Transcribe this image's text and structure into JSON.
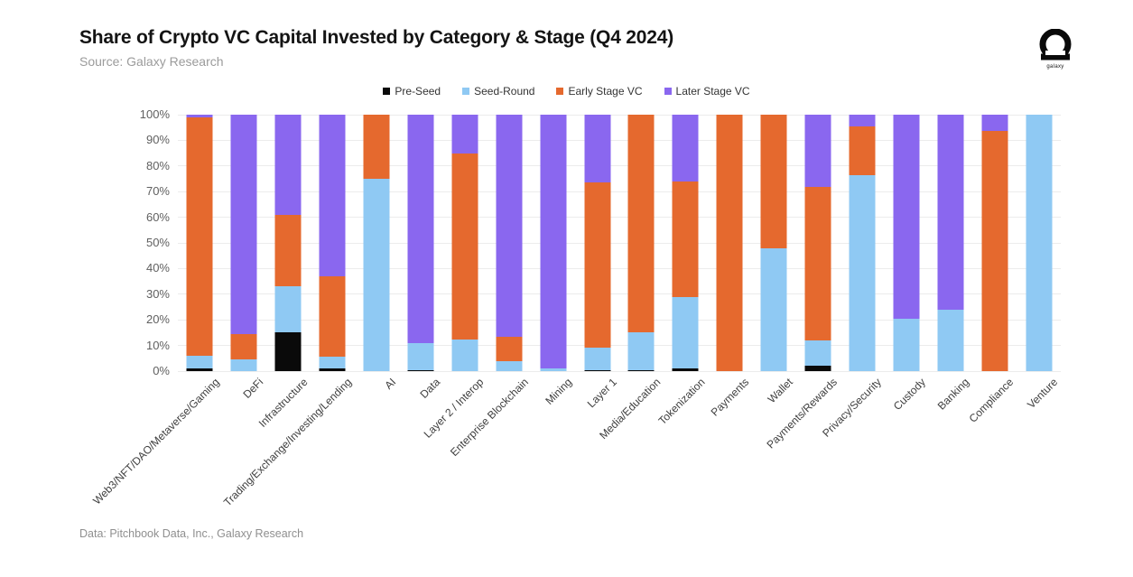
{
  "header": {
    "title": "Share of Crypto VC Capital Invested by Category & Stage (Q4 2024)",
    "source": "Source: Galaxy Research",
    "logo_text": "galaxy"
  },
  "footer": {
    "credit": "Data: Pitchbook Data, Inc., Galaxy Research"
  },
  "colors": {
    "pre_seed": "#0a0a0a",
    "seed_round": "#8FC9F3",
    "early_stage": "#E5692E",
    "later_stage": "#8A67EF",
    "gridline": "#ececec",
    "axis_text": "#606060"
  },
  "chart_data": {
    "type": "bar",
    "stacked": true,
    "stack_total": 100,
    "title": "Share of Crypto VC Capital Invested by Category & Stage (Q4 2024)",
    "xlabel": "",
    "ylabel": "",
    "ylim": [
      0,
      100
    ],
    "grid": true,
    "legend_position": "top-center",
    "ytick_labels": [
      "0%",
      "10%",
      "20%",
      "30%",
      "40%",
      "50%",
      "60%",
      "70%",
      "80%",
      "90%",
      "100%"
    ],
    "categories": [
      "Web3/NFT/DAO/Metaverse/Gaming",
      "DeFi",
      "Infrastructure",
      "Trading/Exchange/Investing/Lending",
      "AI",
      "Data",
      "Layer 2 / Interop",
      "Enterprise Blockchain",
      "Mining",
      "Layer 1",
      "Media/Education",
      "Tokenization",
      "Payments",
      "Wallet",
      "Payments/Rewards",
      "Privacy/Security",
      "Custody",
      "Banking",
      "Compliance",
      "Venture"
    ],
    "series": [
      {
        "name": "Pre-Seed",
        "color": "#0a0a0a",
        "values": [
          1,
          0,
          15,
          1,
          0,
          0.5,
          0,
          0,
          0,
          0.5,
          0.5,
          1,
          0,
          0,
          2,
          0,
          0,
          0,
          0,
          0
        ]
      },
      {
        "name": "Seed-Round",
        "color": "#8FC9F3",
        "values": [
          5,
          4.5,
          18,
          4.5,
          75,
          10.5,
          12.5,
          4,
          1,
          8.5,
          14.5,
          28,
          0,
          48,
          10,
          76.5,
          20.5,
          24,
          0,
          100
        ]
      },
      {
        "name": "Early Stage VC",
        "color": "#E5692E",
        "values": [
          93,
          10,
          28,
          31.5,
          25,
          0,
          72.5,
          9.5,
          0,
          64.5,
          85,
          45,
          100,
          52,
          60,
          19,
          0,
          0,
          93.5,
          0
        ]
      },
      {
        "name": "Later Stage VC",
        "color": "#8A67EF",
        "values": [
          1,
          85.5,
          39,
          63,
          0,
          89,
          15,
          86.5,
          99,
          26.5,
          0,
          26,
          0,
          0,
          28,
          4.5,
          79.5,
          76,
          6.5,
          0
        ]
      }
    ]
  }
}
